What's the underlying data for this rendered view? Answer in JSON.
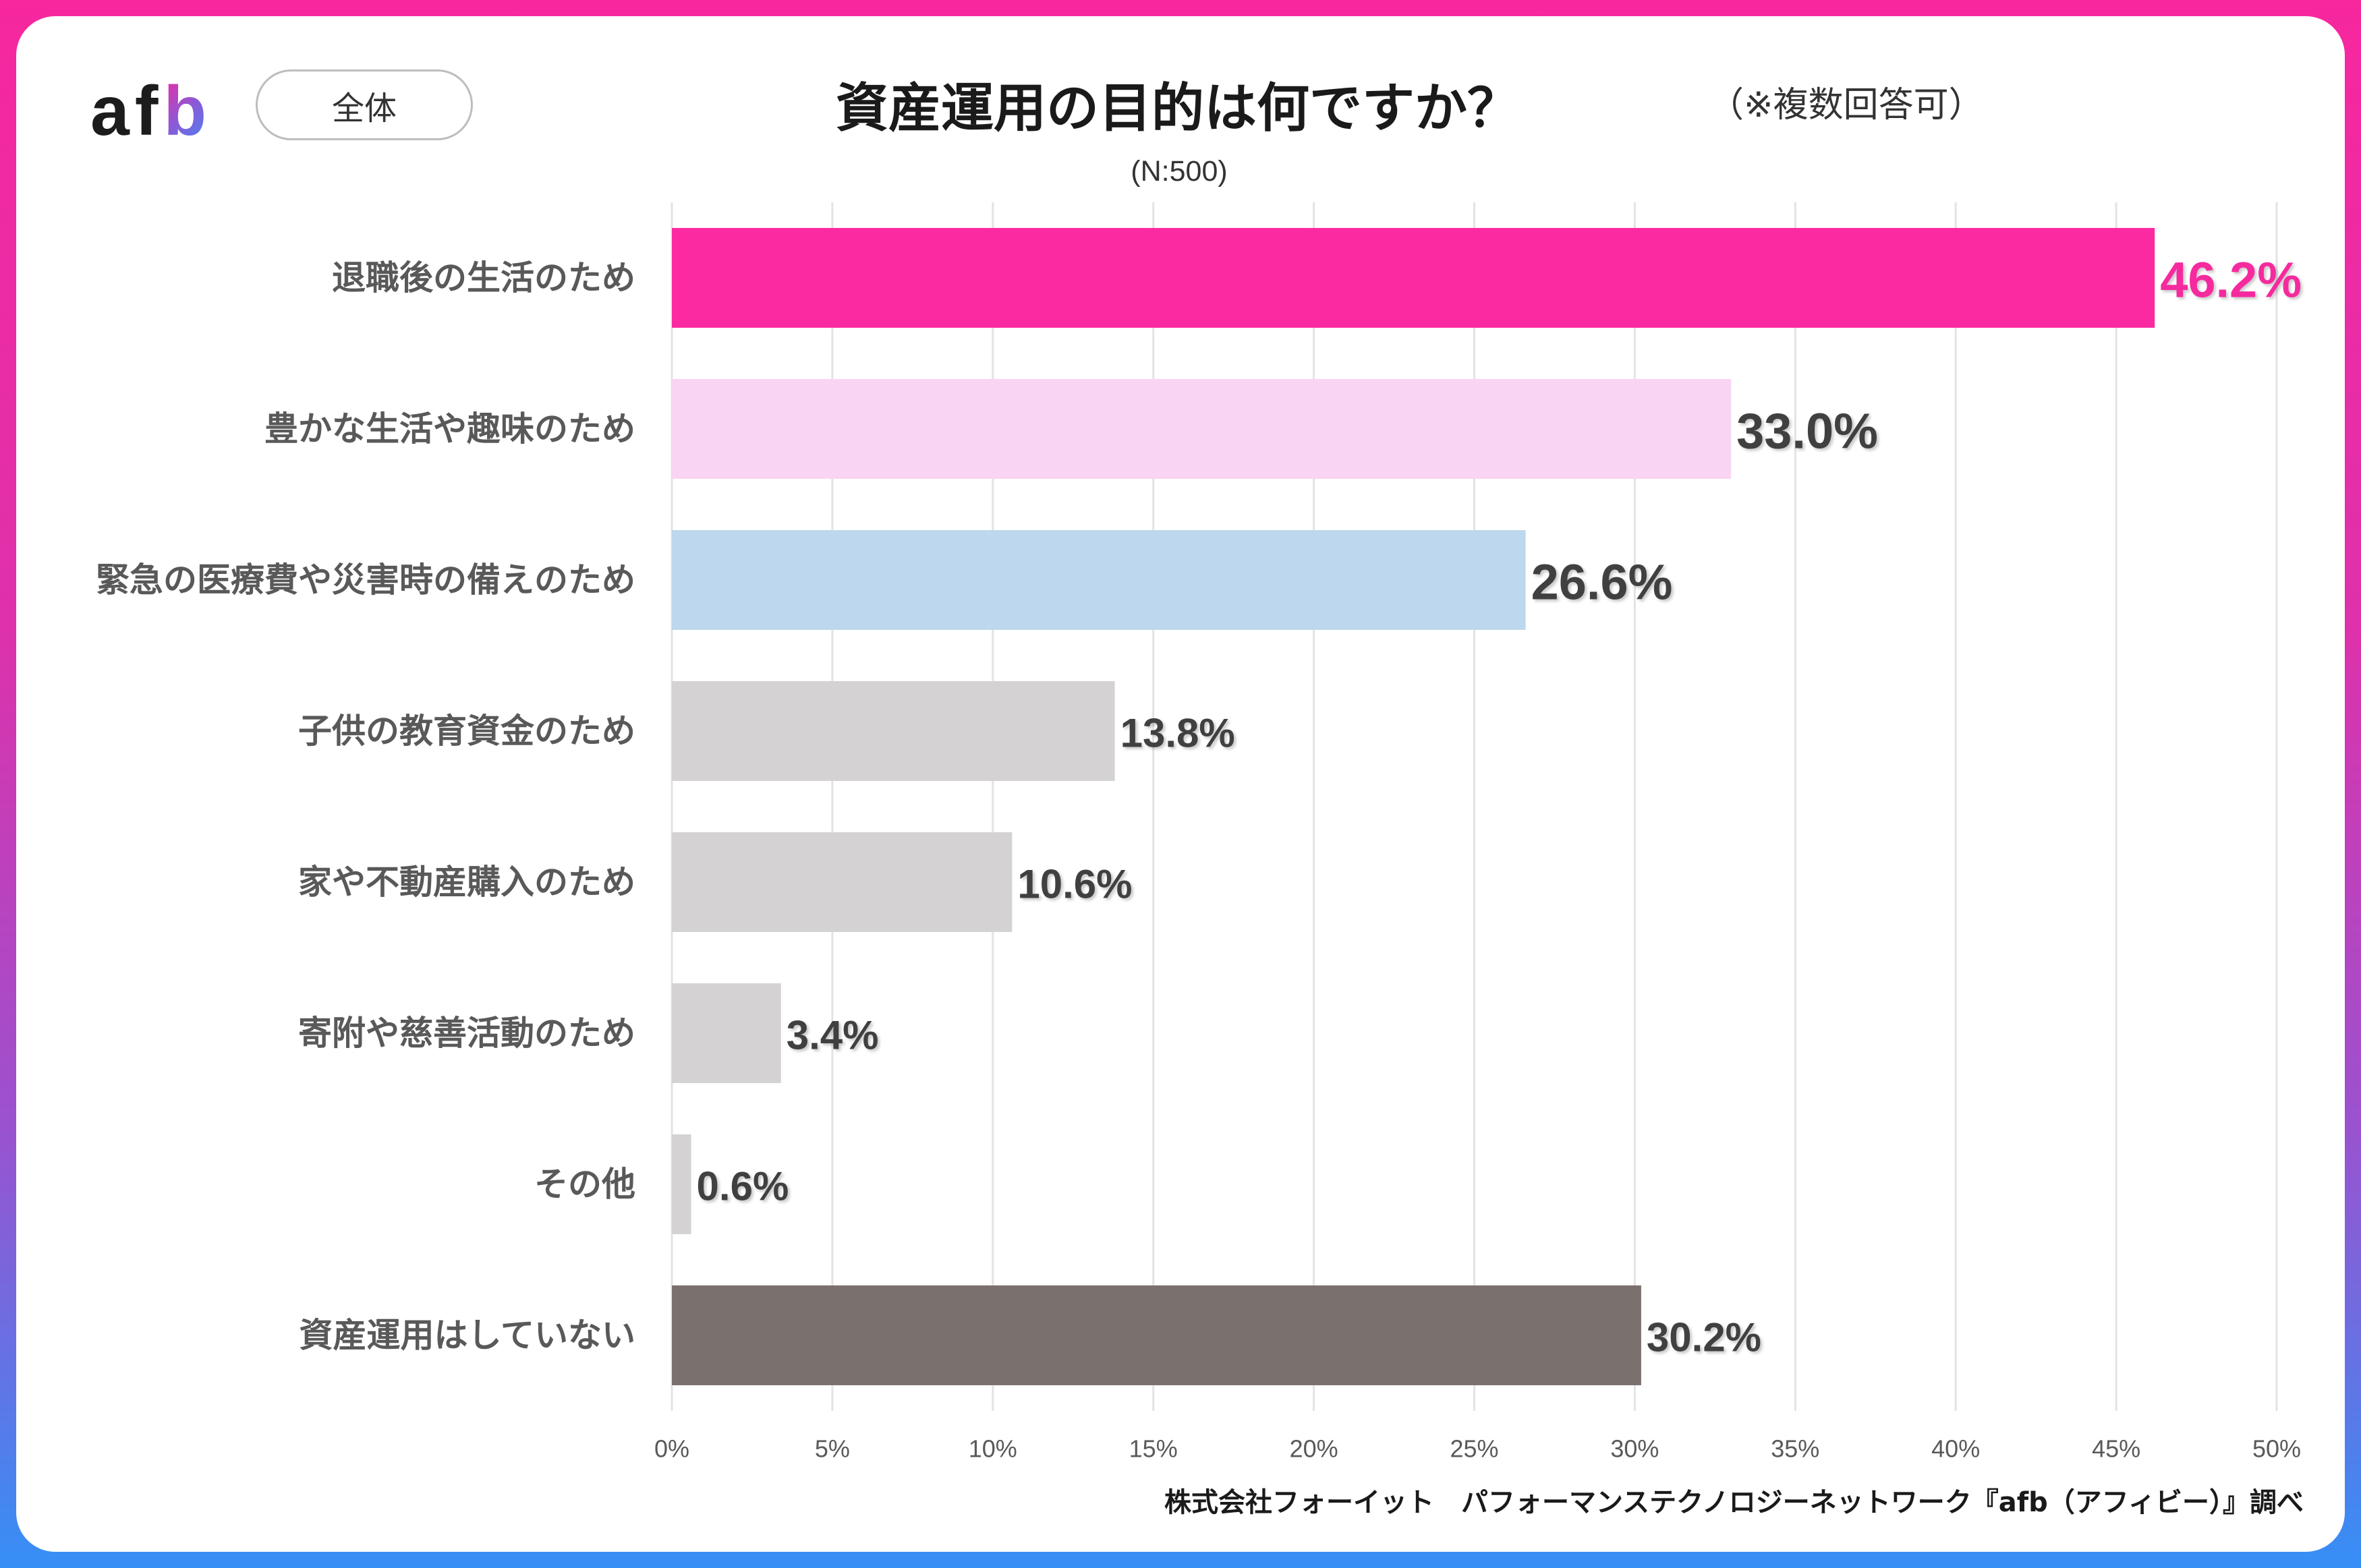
{
  "logo": {
    "text_main": "af",
    "text_accent": "b"
  },
  "segment_label": "全体",
  "footer": {
    "credit": "株式会社フォーイット　パフォーマンステクノロジーネットワーク『afb（アフィビー）』調べ"
  },
  "colors": {
    "frame_top": "#f7279e",
    "frame_upper": "#de31ab",
    "frame_mid": "#9a52cf",
    "frame_bottom": "#368ff6",
    "logo_accent_start": "#f5289f",
    "logo_accent_mid": "#8a5ad8",
    "logo_accent_end": "#3a8df5",
    "category_text": "#595959",
    "tick_text": "#595959",
    "gridline": "#e3e3e3"
  },
  "chart_data": {
    "type": "bar",
    "orientation": "horizontal",
    "title": "資産運用の目的は何ですか？",
    "note": "（※複数回答可）",
    "sample_size": "(N:500)",
    "categories": [
      "退職後の生活のため",
      "豊かな生活や趣味のため",
      "緊急の医療費や災害時の備えのため",
      "子供の教育資金のため",
      "家や不動産購入のため",
      "寄附や慈善活動のため",
      "その他",
      "資産運用はしていない"
    ],
    "values": [
      46.2,
      33.0,
      26.6,
      13.8,
      10.6,
      3.4,
      0.6,
      30.2
    ],
    "value_labels": [
      "46.2%",
      "33.0%",
      "26.6%",
      "13.8%",
      "10.6%",
      "3.4%",
      "0.6%",
      "30.2%"
    ],
    "bar_colors": [
      "#fc2aa0",
      "#fad4f3",
      "#bdd7ee",
      "#d5d2d3",
      "#d5d2d3",
      "#d5d2d3",
      "#d5d2d3",
      "#7a706e"
    ],
    "value_label_colors": [
      "#f52a9e",
      "#404040",
      "#404040",
      "#404040",
      "#404040",
      "#404040",
      "#404040",
      "#404040"
    ],
    "xlim": [
      0,
      50
    ],
    "x_ticks": [
      0,
      5,
      10,
      15,
      20,
      25,
      30,
      35,
      40,
      45,
      50
    ],
    "x_tick_labels": [
      "0%",
      "5%",
      "10%",
      "15%",
      "20%",
      "25%",
      "30%",
      "35%",
      "40%",
      "45%",
      "50%"
    ],
    "grid": true
  }
}
